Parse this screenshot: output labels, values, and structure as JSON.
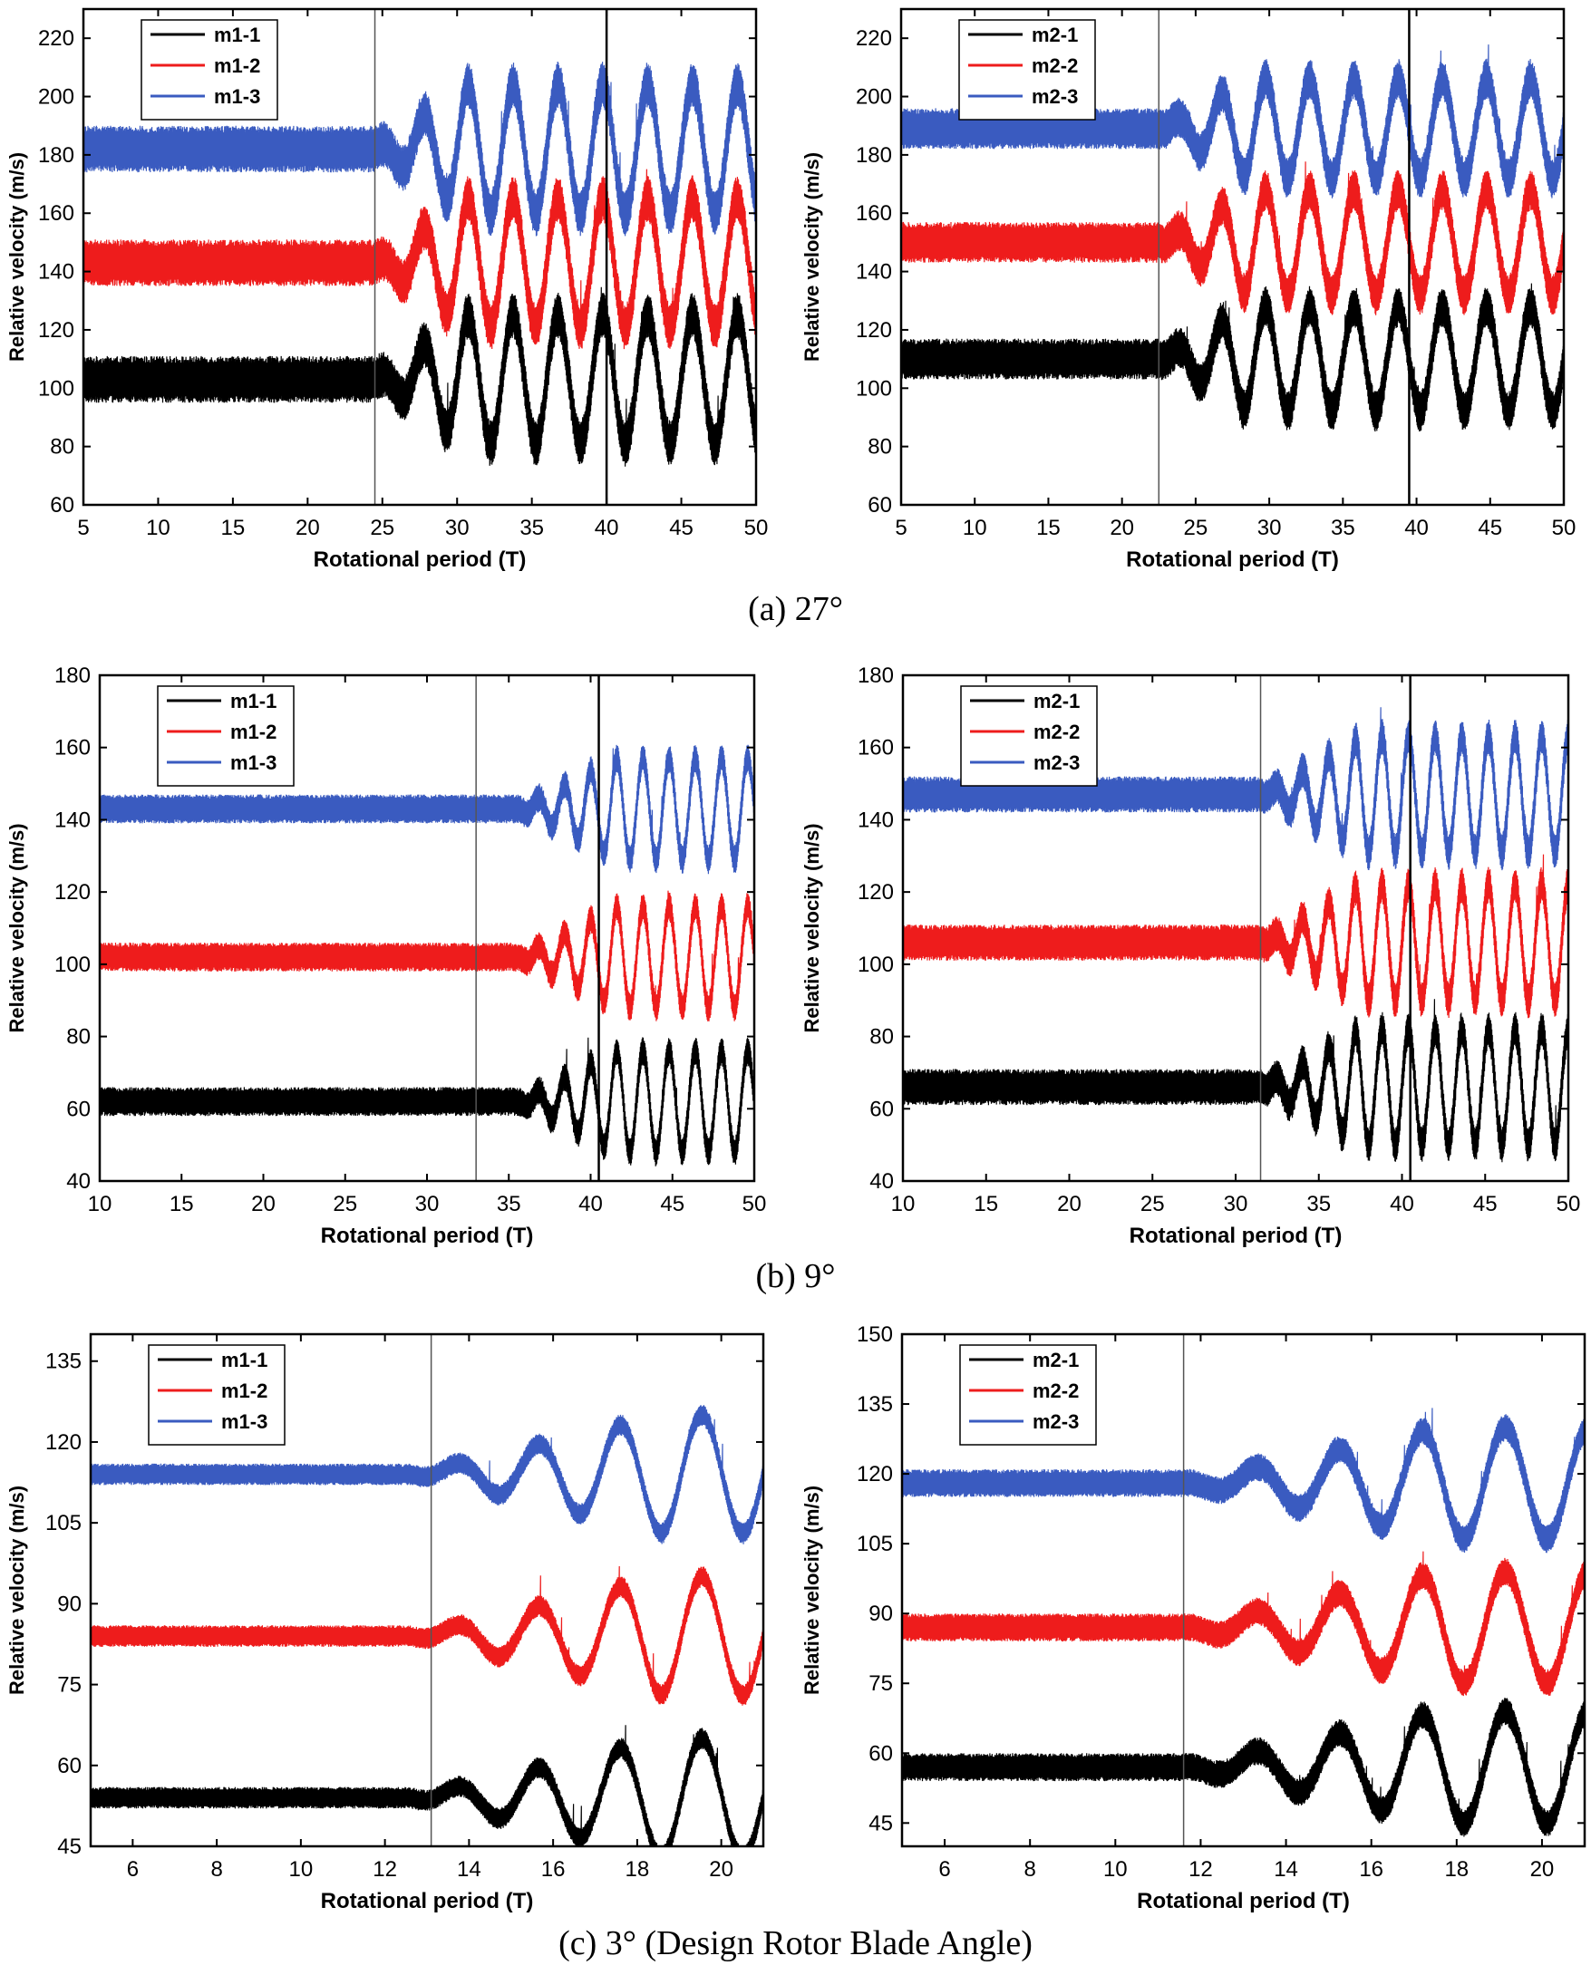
{
  "captions": [
    "(a) 27°",
    "(b) 9°",
    "(c) 3° (Design Rotor Blade Angle)"
  ],
  "colors": {
    "black": "#000000",
    "red": "#ee1c1c",
    "blue": "#3a5bc0"
  },
  "chart_data": [
    {
      "id": "a-left",
      "type": "line",
      "title": "",
      "xlabel": "Rotational period (T)",
      "ylabel": "Relative velocity (m/s)",
      "xlim": [
        5,
        50
      ],
      "ylim": [
        60,
        230
      ],
      "xticks": [
        5,
        10,
        15,
        20,
        25,
        30,
        35,
        40,
        45,
        50
      ],
      "yticks": [
        60,
        80,
        100,
        120,
        140,
        160,
        180,
        200,
        220
      ],
      "vlines": [
        24.5,
        40
      ],
      "transition_start": 24.5,
      "period": 3.0,
      "osc_offset": 27,
      "legend_position": "top-left",
      "series": [
        {
          "name": "m1-1",
          "color": "black",
          "mean": 103,
          "band": 16,
          "amp_max": 22
        },
        {
          "name": "m1-2",
          "color": "red",
          "mean": 143,
          "band": 16,
          "amp_max": 22
        },
        {
          "name": "m1-3",
          "color": "blue",
          "mean": 182,
          "band": 16,
          "amp_max": 22
        }
      ]
    },
    {
      "id": "a-right",
      "type": "line",
      "title": "",
      "xlabel": "Rotational period (T)",
      "ylabel": "Relative velocity (m/s)",
      "xlim": [
        5,
        50
      ],
      "ylim": [
        60,
        230
      ],
      "xticks": [
        5,
        10,
        15,
        20,
        25,
        30,
        35,
        40,
        45,
        50
      ],
      "yticks": [
        60,
        80,
        100,
        120,
        140,
        160,
        180,
        200,
        220
      ],
      "vlines": [
        22.5,
        39.5
      ],
      "transition_start": 22.5,
      "period": 3.0,
      "osc_offset": 26,
      "legend_position": "top-left",
      "series": [
        {
          "name": "m2-1",
          "color": "black",
          "mean": 110,
          "band": 14,
          "amp_max": 18
        },
        {
          "name": "m2-2",
          "color": "red",
          "mean": 150,
          "band": 14,
          "amp_max": 18
        },
        {
          "name": "m2-3",
          "color": "blue",
          "mean": 189,
          "band": 14,
          "amp_max": 17
        }
      ]
    },
    {
      "id": "b-left",
      "type": "line",
      "title": "",
      "xlabel": "Rotational period (T)",
      "ylabel": "Relative velocity (m/s)",
      "xlim": [
        10,
        50
      ],
      "ylim": [
        40,
        180
      ],
      "xticks": [
        10,
        15,
        20,
        25,
        30,
        35,
        40,
        45,
        50
      ],
      "yticks": [
        40,
        60,
        80,
        100,
        120,
        140,
        160,
        180
      ],
      "vlines": [
        33,
        40.5
      ],
      "transition_start": 35.5,
      "period": 1.6,
      "osc_offset": 38,
      "legend_position": "top-left",
      "series": [
        {
          "name": "m1-1",
          "color": "black",
          "mean": 62,
          "band": 8,
          "amp_max": 14
        },
        {
          "name": "m1-2",
          "color": "red",
          "mean": 102,
          "band": 8,
          "amp_max": 14
        },
        {
          "name": "m1-3",
          "color": "blue",
          "mean": 143,
          "band": 8,
          "amp_max": 14
        }
      ]
    },
    {
      "id": "b-right",
      "type": "line",
      "title": "",
      "xlabel": "Rotational period (T)",
      "ylabel": "Relative velocity (m/s)",
      "xlim": [
        10,
        50
      ],
      "ylim": [
        40,
        180
      ],
      "xticks": [
        10,
        15,
        20,
        25,
        30,
        35,
        40,
        45,
        50
      ],
      "yticks": [
        40,
        60,
        80,
        100,
        120,
        140,
        160,
        180
      ],
      "vlines": [
        31.5,
        40.5
      ],
      "transition_start": 31.5,
      "period": 1.6,
      "osc_offset": 40,
      "legend_position": "top-left",
      "series": [
        {
          "name": "m2-1",
          "color": "black",
          "mean": 66,
          "band": 10,
          "amp_max": 16
        },
        {
          "name": "m2-2",
          "color": "red",
          "mean": 106,
          "band": 10,
          "amp_max": 16
        },
        {
          "name": "m2-3",
          "color": "blue",
          "mean": 147,
          "band": 10,
          "amp_max": 16
        }
      ]
    },
    {
      "id": "c-left",
      "type": "line",
      "title": "",
      "xlabel": "Rotational period (T)",
      "ylabel": "Relative velocity (m/s)",
      "xlim": [
        5,
        21
      ],
      "ylim": [
        45,
        140
      ],
      "xticks": [
        6,
        8,
        10,
        12,
        14,
        16,
        18,
        20
      ],
      "yticks": [
        45,
        60,
        75,
        90,
        105,
        120,
        135
      ],
      "vlines": [
        13.1
      ],
      "transition_start": 12.6,
      "period": 1.95,
      "osc_offset": 13.2,
      "legend_position": "top-left",
      "series": [
        {
          "name": "m1-1",
          "color": "black",
          "mean": 54,
          "band": 4,
          "amp_max": 11
        },
        {
          "name": "m1-2",
          "color": "red",
          "mean": 84,
          "band": 4,
          "amp_max": 11
        },
        {
          "name": "m1-3",
          "color": "blue",
          "mean": 114,
          "band": 4,
          "amp_max": 11
        }
      ]
    },
    {
      "id": "c-right",
      "type": "line",
      "title": "",
      "xlabel": "Rotational period (T)",
      "ylabel": "Relative velocity (m/s)",
      "xlim": [
        5,
        21
      ],
      "ylim": [
        40,
        150
      ],
      "xticks": [
        6,
        8,
        10,
        12,
        14,
        16,
        18,
        20
      ],
      "yticks": [
        45,
        60,
        75,
        90,
        105,
        120,
        135,
        150
      ],
      "vlines": [
        11.6
      ],
      "transition_start": 11.6,
      "period": 1.95,
      "osc_offset": 12.8,
      "legend_position": "top-left",
      "series": [
        {
          "name": "m2-1",
          "color": "black",
          "mean": 57,
          "band": 6,
          "amp_max": 12
        },
        {
          "name": "m2-2",
          "color": "red",
          "mean": 87,
          "band": 6,
          "amp_max": 12
        },
        {
          "name": "m2-3",
          "color": "blue",
          "mean": 118,
          "band": 6,
          "amp_max": 12
        }
      ]
    }
  ]
}
